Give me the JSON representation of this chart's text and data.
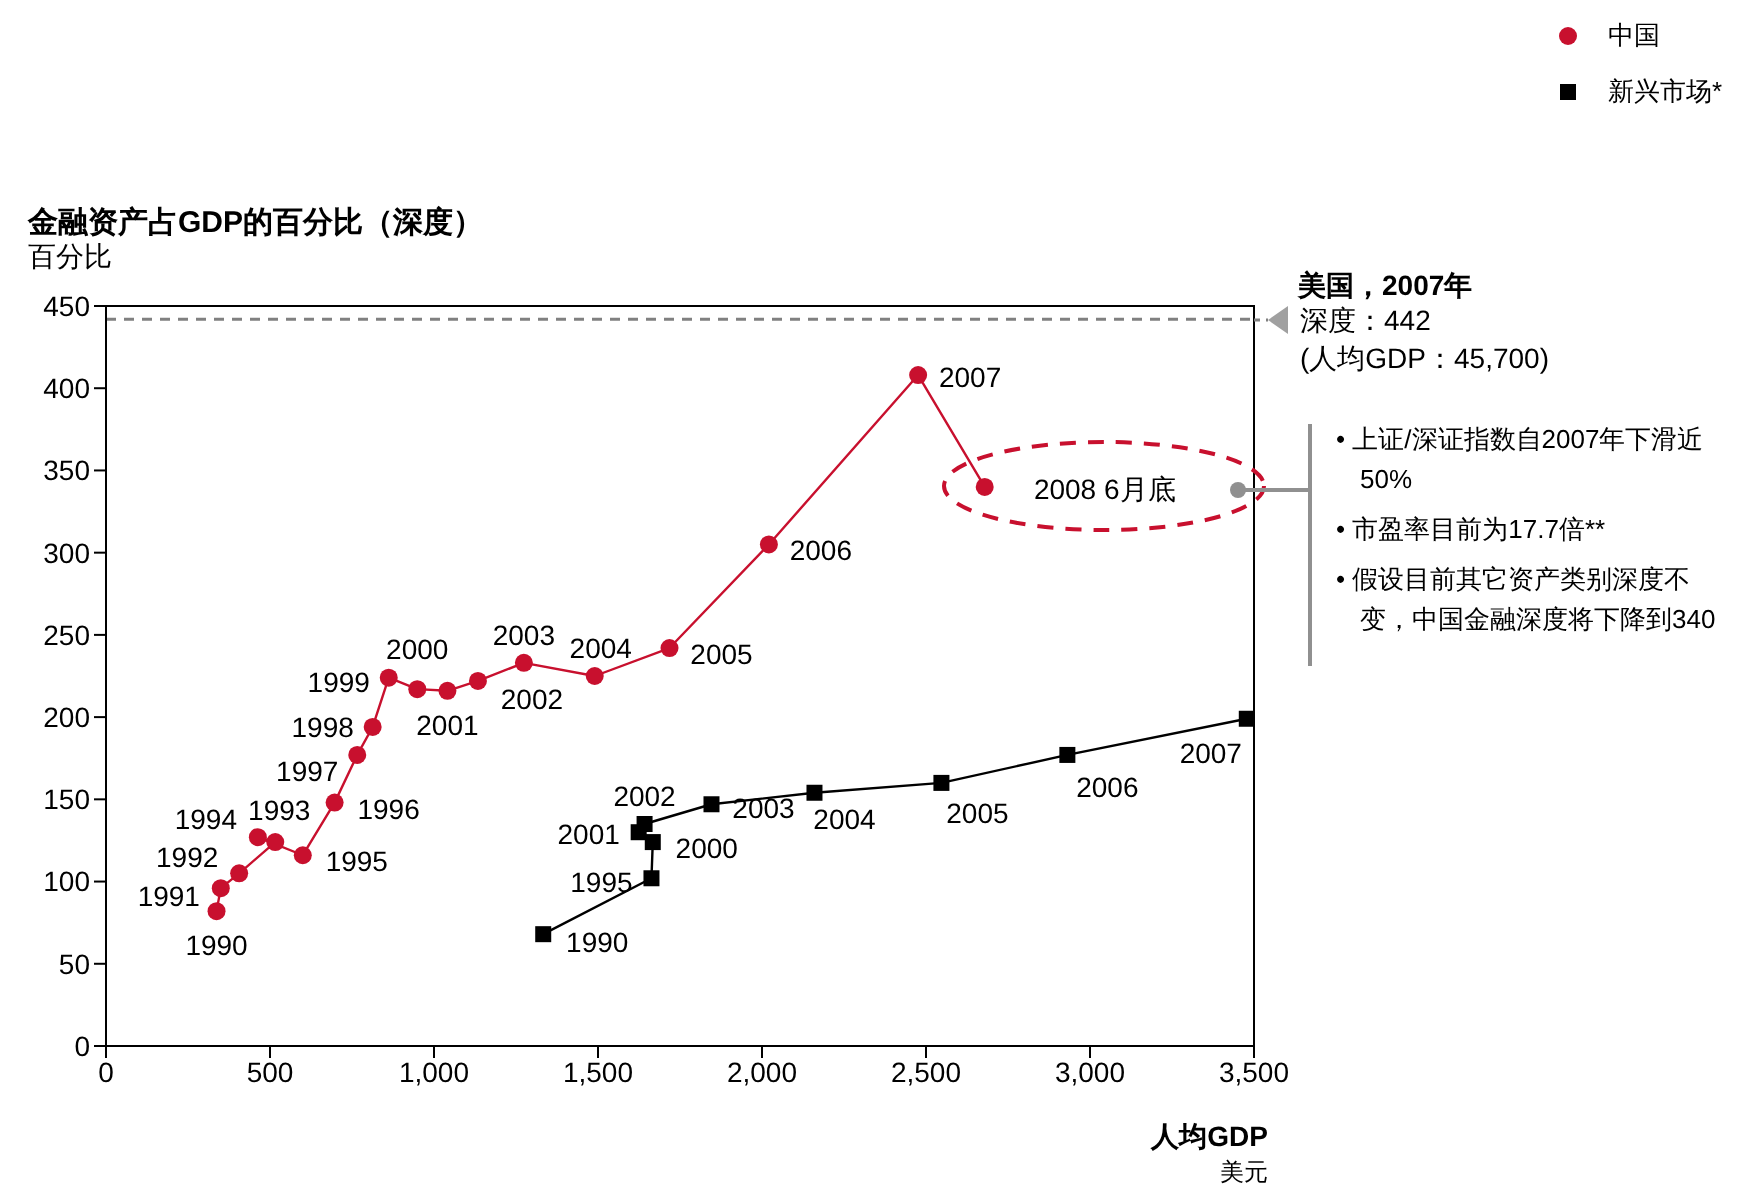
{
  "chart_data": {
    "type": "line",
    "title": "金融资产占GDP的百分比（深度）",
    "ylabel": "百分比",
    "xlabel": "人均GDP",
    "xlim": [
      0,
      3500
    ],
    "xticks": [
      0,
      500,
      {
        "value": 1000,
        "label": "1,000"
      },
      {
        "value": 1500,
        "label": "1,500"
      },
      {
        "value": 2000,
        "label": "2,000"
      },
      {
        "value": 2500,
        "label": "2,500"
      },
      {
        "value": 3000,
        "label": "3,000"
      },
      {
        "value": 3500,
        "label": "3,500"
      }
    ],
    "ylim": [
      0,
      450
    ],
    "yticks": [
      0,
      50,
      100,
      150,
      200,
      250,
      300,
      350,
      400,
      450
    ],
    "grid": false,
    "legend": "top right",
    "line_style": "solid",
    "series": [
      {
        "name": "中国",
        "color": "#c8102e",
        "marker": "circle",
        "x": [
          337,
          350,
          406,
          516,
          463,
          600,
          697,
          766,
          813,
          862,
          949,
          1041,
          1134,
          1274,
          1490,
          1718,
          2021,
          2476,
          2679
        ],
        "values": [
          82,
          96,
          105,
          124,
          127,
          116,
          148,
          177,
          194,
          224,
          217,
          216,
          222,
          233,
          225,
          242,
          305,
          408,
          340
        ]
      },
      {
        "name": "新兴市场*",
        "color": "#000000",
        "marker": "square",
        "x": [
          1333,
          1663,
          1667,
          1624,
          1642,
          1846,
          2160,
          2547,
          2931,
          3478
        ],
        "values": [
          68,
          102,
          124,
          130,
          135,
          147,
          154,
          160,
          177,
          199
        ]
      }
    ],
    "ref_lines": [
      {
        "axis": "y",
        "value": 442,
        "label": "美国，2007年",
        "color": "#808080",
        "line_style": "dashed"
      }
    ],
    "annotations": [
      "深度：442",
      "(人均GDP：45,700)",
      "• 上证/深证指数自2007年下滑近50%",
      "• 市盈率目前为17.7倍**",
      "• 假设目前其它资产类别深度不变，中国金融深度将下降到340",
      "美元",
      {
        "text": "1990",
        "x": 337,
        "y": 82
      },
      {
        "text": "1991",
        "x": 350,
        "y": 96
      },
      {
        "text": "1992",
        "x": 406,
        "y": 105
      },
      {
        "text": "1993",
        "x": 516,
        "y": 124
      },
      {
        "text": "1994",
        "x": 463,
        "y": 127
      },
      {
        "text": "1995",
        "x": 600,
        "y": 116
      },
      {
        "text": "1996",
        "x": 697,
        "y": 148
      },
      {
        "text": "1997",
        "x": 766,
        "y": 177
      },
      {
        "text": "1998",
        "x": 813,
        "y": 194
      },
      {
        "text": "1999",
        "x": 862,
        "y": 224
      },
      {
        "text": "2000",
        "x": 949,
        "y": 217
      },
      {
        "text": "2001",
        "x": 1041,
        "y": 216
      },
      {
        "text": "2002",
        "x": 1134,
        "y": 222
      },
      {
        "text": "2003",
        "x": 1274,
        "y": 233
      },
      {
        "text": "2004",
        "x": 1490,
        "y": 225
      },
      {
        "text": "2005",
        "x": 1718,
        "y": 242
      },
      {
        "text": "2006",
        "x": 2021,
        "y": 305
      },
      {
        "text": "2007",
        "x": 2476,
        "y": 408
      },
      {
        "text": "2008 6月底",
        "x": 2679,
        "y": 340
      },
      {
        "text": "1990",
        "x": 1333,
        "y": 68
      },
      {
        "text": "1995",
        "x": 1663,
        "y": 102
      },
      {
        "text": "2000",
        "x": 1667,
        "y": 124
      },
      {
        "text": "2001",
        "x": 1624,
        "y": 130
      },
      {
        "text": "2002",
        "x": 1642,
        "y": 135
      },
      {
        "text": "2003",
        "x": 1846,
        "y": 147
      },
      {
        "text": "2004",
        "x": 2160,
        "y": 154
      },
      {
        "text": "2005",
        "x": 2547,
        "y": 160
      },
      {
        "text": "2006",
        "x": 2931,
        "y": 177
      },
      {
        "text": "2007",
        "x": 3478,
        "y": 199
      }
    ]
  }
}
